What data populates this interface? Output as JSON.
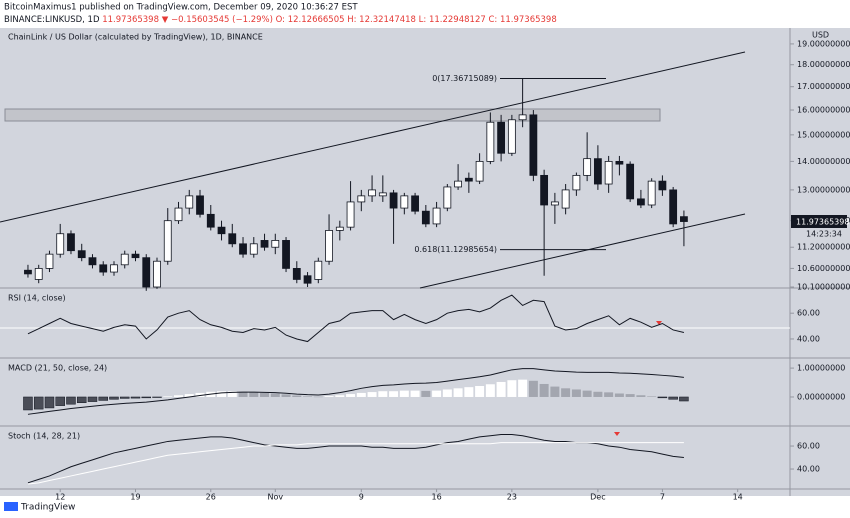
{
  "header": {
    "publisher": "BitcoinMaximus1 published on TradingView.com, December 09, 2020 10:36:27 EST",
    "symbol": "BINANCE:LINKUSD, 1D",
    "last": "11.97365398",
    "change": "▼ −0.15603545 (−1.29%)",
    "ohlc": [
      "O: 12.12666505",
      "H: 12.32147418",
      "L: 11.22948127",
      "C: 11.97365398"
    ],
    "legend": "ChainLink / US Dollar (calculated by TradingView), 1D, BINANCE",
    "currency": "USD",
    "price_label": "11.97365398",
    "countdown": "14:23:34",
    "footer": "TradingView"
  },
  "chart_data": [
    {
      "type": "candlestick",
      "log_scale": true,
      "up_color": "#ffffff",
      "down_color": "#131722",
      "xlim": [
        -2.6,
        70.4
      ],
      "xticks": [
        {
          "value": 3,
          "label": "12"
        },
        {
          "value": 10,
          "label": "19"
        },
        {
          "value": 17,
          "label": "26"
        },
        {
          "value": 23,
          "label": "Nov"
        },
        {
          "value": 31,
          "label": "9"
        },
        {
          "value": 38,
          "label": "16"
        },
        {
          "value": 45,
          "label": "23"
        },
        {
          "value": 53,
          "label": "Dec"
        },
        {
          "value": 59,
          "label": "7"
        },
        {
          "value": 66,
          "label": "14"
        }
      ],
      "ylim": [
        10.1,
        19.7
      ],
      "yticks": [
        {
          "value": 19,
          "label": "19.00000000"
        },
        {
          "value": 18,
          "label": "18.00000000"
        },
        {
          "value": 17,
          "label": "17.00000000"
        },
        {
          "value": 16,
          "label": "16.00000000"
        },
        {
          "value": 15,
          "label": "15.00000000"
        },
        {
          "value": 14,
          "label": "14.00000000"
        },
        {
          "value": 13,
          "label": "13.00000000"
        },
        {
          "value": 12,
          "label": "12.00000000"
        },
        {
          "value": 11.2,
          "label": "11.20000000"
        },
        {
          "value": 10.6,
          "label": "10.60000000"
        },
        {
          "value": 10.1,
          "label": "10.10000000"
        }
      ],
      "open": [
        10.55,
        10.3,
        10.6,
        11.0,
        11.6,
        11.1,
        10.9,
        10.7,
        10.5,
        10.7,
        11.0,
        10.9,
        10.1,
        10.8,
        12.0,
        12.4,
        12.8,
        12.2,
        11.8,
        11.6,
        11.3,
        11.0,
        11.4,
        11.2,
        11.4,
        10.6,
        10.4,
        10.3,
        10.8,
        11.7,
        11.8,
        12.6,
        12.8,
        12.8,
        12.9,
        12.4,
        12.8,
        12.3,
        11.9,
        12.4,
        13.1,
        13.4,
        13.3,
        14.0,
        15.5,
        14.3,
        15.6,
        15.8,
        13.5,
        12.5,
        12.4,
        13.0,
        13.5,
        14.1,
        13.2,
        14.0,
        13.9,
        12.7,
        12.5,
        13.3,
        13.0,
        12.12666505
      ],
      "high": [
        10.7,
        10.7,
        11.1,
        11.9,
        11.7,
        11.3,
        11.0,
        10.8,
        10.8,
        11.1,
        11.1,
        11.0,
        10.9,
        12.4,
        12.6,
        13.0,
        13.0,
        12.5,
        12.0,
        11.9,
        11.5,
        11.5,
        11.6,
        11.6,
        11.5,
        10.8,
        10.5,
        10.9,
        12.2,
        12.0,
        13.3,
        13.0,
        13.5,
        13.5,
        13.0,
        12.9,
        12.9,
        12.5,
        12.6,
        13.2,
        13.9,
        13.6,
        14.3,
        15.9,
        15.8,
        15.8,
        17.37,
        16.0,
        13.7,
        12.9,
        13.2,
        13.6,
        15.1,
        14.6,
        14.2,
        14.2,
        14.0,
        13.0,
        13.4,
        13.5,
        13.1,
        12.32147418
      ],
      "low": [
        10.35,
        10.2,
        10.5,
        10.9,
        11.0,
        10.8,
        10.6,
        10.4,
        10.4,
        10.6,
        10.8,
        10.0,
        10.05,
        10.7,
        11.9,
        12.2,
        12.1,
        11.7,
        11.4,
        11.2,
        10.9,
        10.9,
        11.1,
        11.0,
        10.5,
        10.2,
        10.1,
        10.2,
        10.7,
        11.4,
        11.7,
        12.3,
        12.6,
        12.6,
        11.3,
        12.2,
        12.2,
        11.8,
        11.8,
        12.3,
        13.0,
        12.9,
        13.2,
        13.9,
        14.0,
        14.2,
        15.3,
        13.3,
        10.4,
        11.9,
        12.2,
        12.8,
        13.3,
        13.0,
        12.9,
        13.5,
        12.6,
        12.4,
        12.4,
        12.8,
        11.8,
        11.22948127
      ],
      "close": [
        10.45,
        10.6,
        11.0,
        11.6,
        11.1,
        10.9,
        10.7,
        10.5,
        10.7,
        11.0,
        10.9,
        10.1,
        10.8,
        12.0,
        12.4,
        12.8,
        12.2,
        11.8,
        11.6,
        11.3,
        11.0,
        11.3,
        11.2,
        11.4,
        10.6,
        10.3,
        10.2,
        10.8,
        11.7,
        11.8,
        12.6,
        12.8,
        13.0,
        12.9,
        12.4,
        12.8,
        12.3,
        11.9,
        12.4,
        13.1,
        13.3,
        13.3,
        14.0,
        15.5,
        14.3,
        15.6,
        15.8,
        13.5,
        12.5,
        12.6,
        13.0,
        13.5,
        14.1,
        13.2,
        14.0,
        13.9,
        12.7,
        12.5,
        13.3,
        13.0,
        11.9,
        11.97365398
      ],
      "annotations": [
        {
          "label": "0(17.36715089)",
          "value": 17.36715089
        },
        {
          "label": "0.618(11.12985654)",
          "value": 11.12985654
        }
      ]
    },
    {
      "type": "line",
      "title": "RSI (14, close)",
      "ylim": [
        26,
        78
      ],
      "yticks": [
        {
          "value": 60,
          "label": "60.00"
        },
        {
          "value": 40,
          "label": "40.00"
        }
      ],
      "series": [
        {
          "color": "#131722",
          "values": [
            44,
            48,
            52,
            56,
            52,
            50,
            48,
            46,
            49,
            51,
            50,
            40,
            47,
            57,
            60,
            62,
            55,
            51,
            49,
            46,
            45,
            48,
            47,
            49,
            43,
            40,
            38,
            45,
            52,
            54,
            60,
            61,
            62,
            62,
            55,
            59,
            55,
            52,
            55,
            60,
            62,
            63,
            61,
            64,
            70,
            74,
            66,
            70,
            69,
            50,
            47,
            48,
            52,
            55,
            58,
            51,
            56,
            53,
            49,
            52,
            47,
            45
          ]
        }
      ]
    },
    {
      "type": "macd",
      "title": "MACD (21, 50, close, 24)",
      "ylim": [
        -0.97,
        1.28
      ],
      "yticks": [
        {
          "value": 1,
          "label": "1.00000000"
        },
        {
          "value": 0,
          "label": "0.00000000"
        }
      ],
      "histogram": {
        "rising_color": "#ffffff",
        "falling_color": "#a3a6af",
        "negative_color": "#4a4d57",
        "values": [
          -0.45,
          -0.42,
          -0.38,
          -0.3,
          -0.25,
          -0.2,
          -0.16,
          -0.12,
          -0.08,
          -0.05,
          -0.04,
          -0.03,
          -0.01,
          0.02,
          0.06,
          0.1,
          0.14,
          0.18,
          0.2,
          0.2,
          0.18,
          0.16,
          0.14,
          0.12,
          0.09,
          0.05,
          0.02,
          0.01,
          0.03,
          0.06,
          0.1,
          0.14,
          0.17,
          0.2,
          0.2,
          0.22,
          0.22,
          0.21,
          0.22,
          0.26,
          0.3,
          0.34,
          0.38,
          0.44,
          0.52,
          0.58,
          0.6,
          0.56,
          0.45,
          0.36,
          0.3,
          0.26,
          0.22,
          0.18,
          0.16,
          0.12,
          0.1,
          0.06,
          0.02,
          -0.03,
          -0.08,
          -0.14
        ]
      },
      "series": [
        {
          "color": "#131722",
          "values": [
            -0.6,
            -0.55,
            -0.5,
            -0.45,
            -0.4,
            -0.36,
            -0.32,
            -0.28,
            -0.25,
            -0.22,
            -0.2,
            -0.18,
            -0.14,
            -0.1,
            -0.05,
            0,
            0.05,
            0.1,
            0.14,
            0.16,
            0.17,
            0.17,
            0.16,
            0.15,
            0.13,
            0.1,
            0.08,
            0.07,
            0.1,
            0.15,
            0.22,
            0.3,
            0.36,
            0.4,
            0.42,
            0.45,
            0.47,
            0.48,
            0.5,
            0.55,
            0.6,
            0.65,
            0.7,
            0.76,
            0.85,
            0.94,
            0.98,
            0.98,
            0.94,
            0.9,
            0.88,
            0.86,
            0.85,
            0.85,
            0.85,
            0.83,
            0.82,
            0.8,
            0.78,
            0.75,
            0.72,
            0.68
          ]
        }
      ]
    },
    {
      "type": "line",
      "title": "Stoch (14, 28, 21)",
      "ylim": [
        23.5,
        75.7
      ],
      "yticks": [
        {
          "value": 60,
          "label": "60.00"
        },
        {
          "value": 40,
          "label": "40.00"
        }
      ],
      "series": [
        {
          "color": "#131722",
          "values": [
            28,
            31,
            34,
            38,
            42,
            45,
            48,
            51,
            54,
            56,
            58,
            60,
            62,
            64,
            65,
            66,
            67,
            68,
            68,
            67,
            65,
            63,
            61,
            60,
            59,
            58,
            58,
            59,
            60,
            60,
            60,
            60,
            59,
            59,
            58,
            58,
            58,
            59,
            61,
            63,
            64,
            66,
            68,
            69,
            70,
            70,
            69,
            67,
            65,
            64,
            64,
            63,
            63,
            62,
            60,
            59,
            57,
            56,
            55,
            53,
            51,
            50
          ]
        },
        {
          "color": "#ffffff",
          "values": [
            27,
            28,
            30,
            32,
            34,
            36,
            38,
            40,
            42,
            44,
            46,
            48,
            50,
            52,
            53,
            54,
            55,
            56,
            57,
            58,
            59,
            60,
            60,
            61,
            61,
            61,
            62,
            62,
            62,
            62,
            62,
            62,
            62,
            62,
            62,
            62,
            62,
            62,
            62,
            62,
            62,
            62,
            62,
            62,
            63,
            63,
            63,
            63,
            63,
            63,
            63,
            63,
            63,
            63,
            63,
            63,
            63,
            63,
            63,
            63,
            63,
            63
          ]
        }
      ]
    }
  ]
}
